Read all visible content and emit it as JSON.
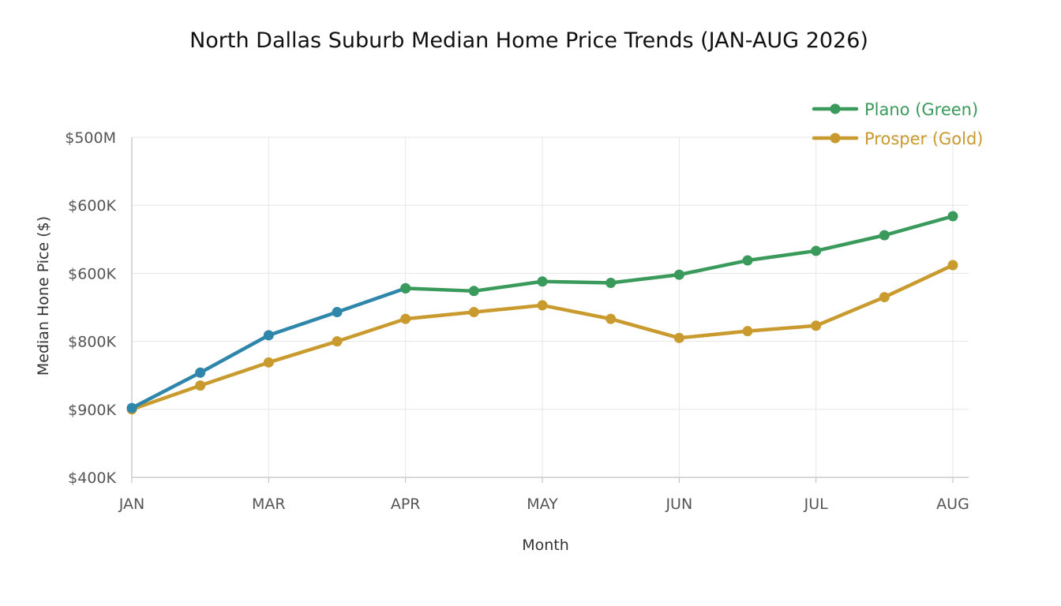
{
  "chart_data": {
    "type": "line",
    "title": "North Dallas Suburb Median Home Price Trends (JAN-AUG 2026)",
    "xlabel": "Month",
    "ylabel": "Median Hone Pice ($)",
    "x_tick_labels": [
      "JAN",
      "MAR",
      "APR",
      "MAY",
      "JUN",
      "JUL",
      "AUG"
    ],
    "y_tick_labels": [
      "$500M",
      "$600K",
      "$600K",
      "$800K",
      "$900K",
      "$400K"
    ],
    "x_domain": [
      0,
      12
    ],
    "y_domain": [
      0,
      5
    ],
    "grid": true,
    "legend_position": "top-right",
    "series": [
      {
        "name": "Plano (Green)",
        "color": "#3a9a5b",
        "segments": [
          {
            "color": "#2e86ab",
            "x": [
              0,
              1,
              2,
              3,
              4
            ],
            "y": [
              1.02,
              1.54,
              2.09,
              2.43,
              2.78
            ]
          },
          {
            "color": "#3a9a5b",
            "x": [
              4,
              5,
              6,
              7,
              8,
              9,
              10,
              11,
              12
            ],
            "y": [
              2.78,
              2.74,
              2.88,
              2.86,
              2.98,
              3.19,
              3.33,
              3.56,
              3.84
            ]
          }
        ],
        "x": [
          0,
          1,
          2,
          3,
          4,
          5,
          6,
          7,
          8,
          9,
          10,
          11,
          12
        ],
        "values": [
          1.02,
          1.54,
          2.09,
          2.43,
          2.78,
          2.74,
          2.88,
          2.86,
          2.98,
          3.19,
          3.33,
          3.56,
          3.84
        ]
      },
      {
        "name": "Prosper (Gold)",
        "color": "#c99a2e",
        "x": [
          0,
          1,
          2,
          3,
          4,
          5,
          6,
          7,
          8,
          9,
          10,
          11,
          12
        ],
        "values": [
          1.0,
          1.35,
          1.69,
          2.0,
          2.33,
          2.43,
          2.53,
          2.33,
          2.05,
          2.15,
          2.23,
          2.65,
          3.12
        ]
      }
    ]
  }
}
